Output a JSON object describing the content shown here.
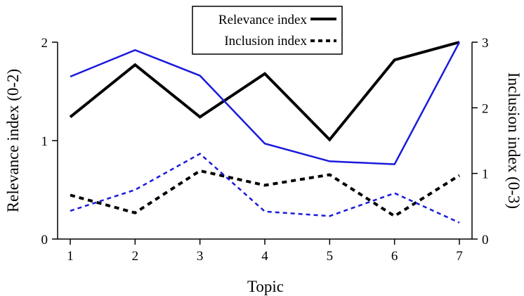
{
  "chart_data": {
    "type": "line",
    "xlabel": "Topic",
    "ylabel_left": "Relevance index (0-2)",
    "ylabel_right": "Inclusion index (0-3)",
    "x": [
      1,
      2,
      3,
      4,
      5,
      6,
      7
    ],
    "x_ticks": [
      "1",
      "2",
      "3",
      "4",
      "5",
      "6",
      "7"
    ],
    "y_left_lim": [
      0,
      2
    ],
    "y_left_ticks": [
      "0",
      "1",
      "2"
    ],
    "y_right_lim": [
      0,
      3
    ],
    "y_right_ticks": [
      "0",
      "1",
      "2",
      "3"
    ],
    "grid": false,
    "legend_placement": "top-center",
    "legend": [
      {
        "label": "Relevance index",
        "style": "solid"
      },
      {
        "label": "Inclusion index",
        "style": "dashed"
      }
    ],
    "series": [
      {
        "axis": "left",
        "color": "#000000",
        "style": "solid",
        "values": [
          1.24,
          1.77,
          1.24,
          1.68,
          1.01,
          1.82,
          2.0
        ]
      },
      {
        "axis": "left",
        "color": "#1a1adc",
        "style": "solid",
        "values": [
          1.65,
          1.92,
          1.66,
          0.97,
          0.79,
          0.76,
          2.0
        ]
      },
      {
        "axis": "right",
        "color": "#000000",
        "style": "dashed",
        "values": [
          0.67,
          0.4,
          1.04,
          0.82,
          0.98,
          0.35,
          0.97
        ]
      },
      {
        "axis": "right",
        "color": "#1a1adc",
        "style": "dashed",
        "values": [
          0.43,
          0.75,
          1.3,
          0.42,
          0.35,
          0.7,
          0.25
        ]
      }
    ]
  }
}
